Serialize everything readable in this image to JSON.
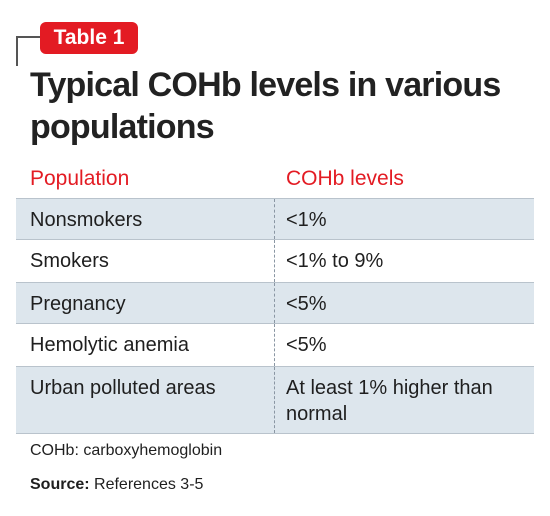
{
  "tag": {
    "label": "Table 1"
  },
  "title": "Typical COHb levels in various populations",
  "table": {
    "headers": [
      "Population",
      "COHb levels"
    ],
    "rows": [
      {
        "population": "Nonsmokers",
        "level": "<1%"
      },
      {
        "population": "Smokers",
        "level": "<1% to 9%"
      },
      {
        "population": "Pregnancy",
        "level": "<5%"
      },
      {
        "population": "Hemolytic anemia",
        "level": "<5%"
      },
      {
        "population": "Urban polluted areas",
        "level": "At least 1% higher than normal"
      }
    ]
  },
  "footnote": "COHb: carboxyhemoglobin",
  "source": {
    "label": "Source:",
    "text": "References 3-5"
  },
  "colors": {
    "accent": "#e31b23",
    "row_shade": "#dde6ed"
  }
}
